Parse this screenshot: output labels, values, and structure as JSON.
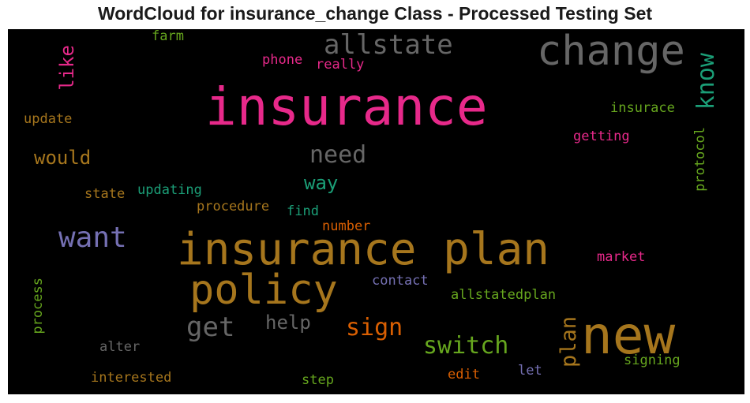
{
  "chart_data": {
    "type": "wordcloud",
    "title": "WordCloud for insurance_change Class - Processed Testing Set",
    "background": "#000000",
    "words": [
      {
        "text": "insurance plan",
        "color": "#a6761d"
      },
      {
        "text": "insurance",
        "color": "#e7298a"
      },
      {
        "text": "change",
        "color": "#666666"
      },
      {
        "text": "new",
        "color": "#a6761d"
      },
      {
        "text": "policy",
        "color": "#a6761d"
      },
      {
        "text": "want",
        "color": "#7570b3"
      },
      {
        "text": "allstate",
        "color": "#666666"
      },
      {
        "text": "know",
        "color": "#1b9e77"
      },
      {
        "text": "get",
        "color": "#666666"
      },
      {
        "text": "switch",
        "color": "#66a61e"
      },
      {
        "text": "sign",
        "color": "#d95f02"
      },
      {
        "text": "need",
        "color": "#666666"
      },
      {
        "text": "plan",
        "color": "#a6761d"
      },
      {
        "text": "help",
        "color": "#666666"
      },
      {
        "text": "would",
        "color": "#a6761d"
      },
      {
        "text": "like",
        "color": "#e7298a"
      },
      {
        "text": "way",
        "color": "#1b9e77"
      },
      {
        "text": "insurace",
        "color": "#66a61e"
      },
      {
        "text": "getting",
        "color": "#e7298a"
      },
      {
        "text": "protocol",
        "color": "#66a61e"
      },
      {
        "text": "market",
        "color": "#e7298a"
      },
      {
        "text": "allstatedplan",
        "color": "#66a61e"
      },
      {
        "text": "contact",
        "color": "#7570b3"
      },
      {
        "text": "number",
        "color": "#d95f02"
      },
      {
        "text": "find",
        "color": "#1b9e77"
      },
      {
        "text": "procedure",
        "color": "#a6761d"
      },
      {
        "text": "updating",
        "color": "#1b9e77"
      },
      {
        "text": "state",
        "color": "#a6761d"
      },
      {
        "text": "update",
        "color": "#a6761d"
      },
      {
        "text": "farm",
        "color": "#66a61e"
      },
      {
        "text": "phone",
        "color": "#e7298a"
      },
      {
        "text": "really",
        "color": "#e7298a"
      },
      {
        "text": "process",
        "color": "#66a61e"
      },
      {
        "text": "alter",
        "color": "#666666"
      },
      {
        "text": "interested",
        "color": "#a6761d"
      },
      {
        "text": "step",
        "color": "#66a61e"
      },
      {
        "text": "edit",
        "color": "#d95f02"
      },
      {
        "text": "let",
        "color": "#7570b3"
      },
      {
        "text": "signing",
        "color": "#66a61e"
      }
    ]
  }
}
